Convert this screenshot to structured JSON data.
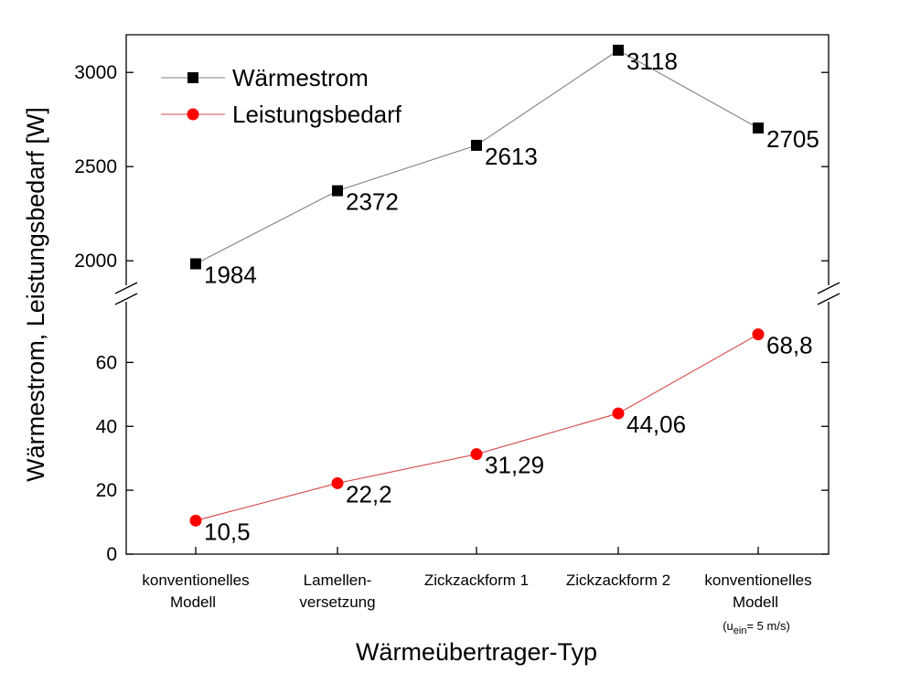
{
  "chart_data": {
    "type": "line",
    "xlabel": "Wärmeübertrager-Typ",
    "ylabel": "Wärmestrom, Leistungsbedarf [W]",
    "categories": [
      {
        "lines": [
          "konventionelles",
          "Modell"
        ],
        "note": ""
      },
      {
        "lines": [
          "Lamellen-",
          "versetzung"
        ],
        "note": ""
      },
      {
        "lines": [
          "Zickzackform 1"
        ],
        "note": ""
      },
      {
        "lines": [
          "Zickzackform 2"
        ],
        "note": ""
      },
      {
        "lines": [
          "konventionelles",
          "Modell"
        ],
        "note_main": "(u",
        "note_sub": "ein",
        "note_rest": "= 5 m/s)"
      }
    ],
    "axis_break": true,
    "upper_axis": {
      "ylim": [
        1870,
        3200
      ],
      "ticks": [
        2000,
        2500,
        3000
      ]
    },
    "lower_axis": {
      "ylim": [
        0,
        79
      ],
      "ticks": [
        0,
        20,
        40,
        60
      ]
    },
    "series": [
      {
        "name": "Wärmestrom",
        "axis": "upper",
        "marker": "square",
        "color": "#000000",
        "line_color": "#7f7f7f",
        "values": [
          1984,
          2372,
          2613,
          3118,
          2705
        ],
        "labels": [
          "1984",
          "2372",
          "2613",
          "3118",
          "2705"
        ]
      },
      {
        "name": "Leistungsbedarf",
        "axis": "lower",
        "marker": "circle",
        "color": "#ff0000",
        "line_color": "#d64a4a",
        "values": [
          10.5,
          22.2,
          31.29,
          44.06,
          68.8
        ],
        "labels": [
          "10,5",
          "22,2",
          "31,29",
          "44,06",
          "68,8"
        ]
      }
    ],
    "legend": "top-left",
    "grid": false
  }
}
